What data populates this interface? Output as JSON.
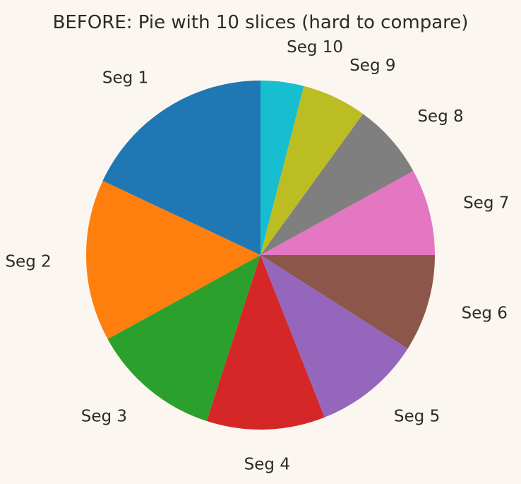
{
  "chart_data": {
    "type": "pie",
    "title": "BEFORE: Pie with 10 slices (hard to compare)",
    "start_angle_deg": 90,
    "direction": "counterclockwise",
    "categories": [
      "Seg 1",
      "Seg 2",
      "Seg 3",
      "Seg 4",
      "Seg 5",
      "Seg 6",
      "Seg 7",
      "Seg 8",
      "Seg 9",
      "Seg 10"
    ],
    "values": [
      18,
      15,
      12,
      11,
      10,
      9,
      8,
      7,
      6,
      4
    ],
    "colors": [
      "#1f77b4",
      "#ff7f0e",
      "#2ca02c",
      "#d62728",
      "#9467bd",
      "#8c564b",
      "#e377c2",
      "#7f7f7f",
      "#bcbd22",
      "#17becf"
    ]
  }
}
